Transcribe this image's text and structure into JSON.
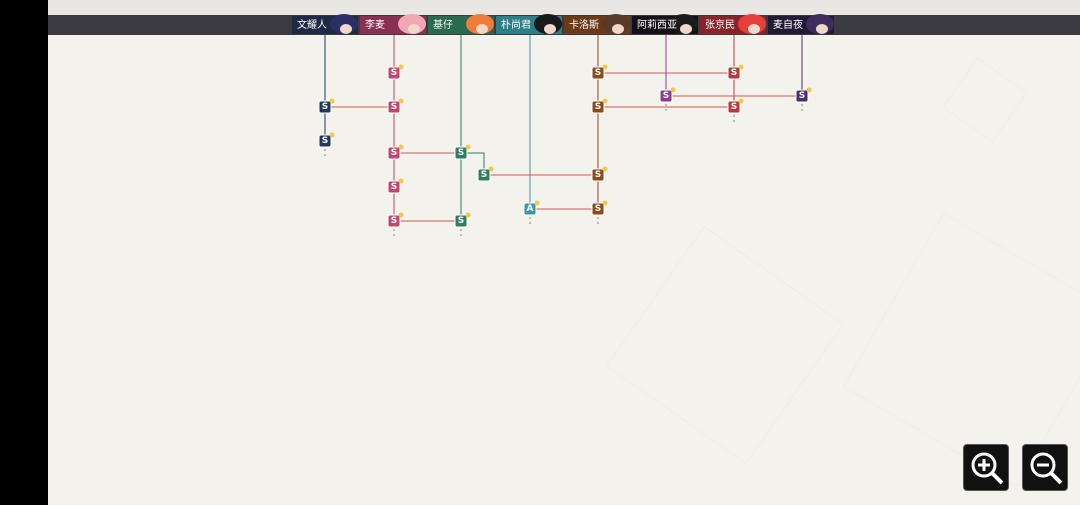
{
  "header": {
    "characters": [
      "文耀人",
      "李麦",
      "基仔",
      "朴尚君",
      "卡洛斯",
      "阿莉西亚",
      "张京民",
      "麦自夜"
    ]
  },
  "nodes": [
    "S",
    "S",
    "S",
    "S",
    "S",
    "S",
    "S",
    "S",
    "S",
    "S",
    "S",
    "S",
    "S",
    "S",
    "S",
    "S",
    "S",
    "A",
    "S"
  ]
}
